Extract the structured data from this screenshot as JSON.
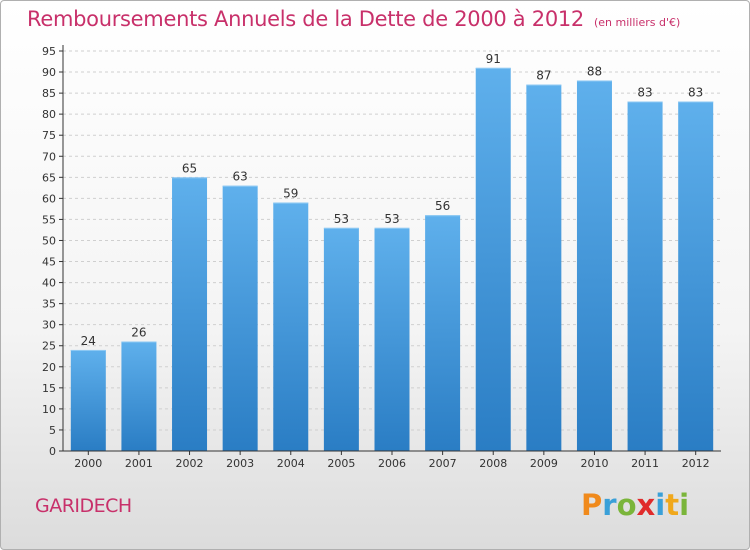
{
  "header": {
    "title": "Remboursements Annuels de la Dette de 2000 à 2012",
    "unit": "(en milliers d'€)"
  },
  "footer": {
    "commune": "GARIDECH",
    "logo_letters": [
      "P",
      "r",
      "o",
      "x",
      "i",
      "t",
      "i"
    ],
    "logo_colors": [
      "#f08a1c",
      "#3aa0d8",
      "#7ab53a",
      "#e02b2b",
      "#3aa0d8",
      "#f0a81c",
      "#7ab53a"
    ]
  },
  "colors": {
    "bar": "#3f97dd",
    "bar_light": "#5fb0ec",
    "bar_dark": "#2a7dc4",
    "axis": "#333333",
    "grid": "#cfcfcf",
    "title": "#c8306a"
  },
  "chart_data": {
    "type": "bar",
    "title": "Remboursements Annuels de la Dette de 2000 à 2012",
    "subtitle": "(en milliers d'€)",
    "categories": [
      "2000",
      "2001",
      "2002",
      "2003",
      "2004",
      "2005",
      "2006",
      "2007",
      "2008",
      "2009",
      "2010",
      "2011",
      "2012"
    ],
    "values": [
      24,
      26,
      65,
      63,
      59,
      53,
      53,
      56,
      91,
      87,
      88,
      83,
      83
    ],
    "ylim": [
      0,
      95
    ],
    "yticks": [
      0,
      5,
      10,
      15,
      20,
      25,
      30,
      35,
      40,
      45,
      50,
      55,
      60,
      65,
      70,
      75,
      80,
      85,
      90,
      95
    ],
    "grid": true,
    "data_labels": true
  }
}
